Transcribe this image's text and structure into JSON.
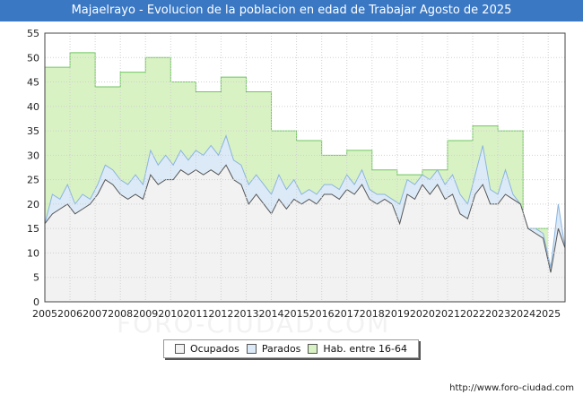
{
  "header": {
    "title": "Majaelrayo - Evolucion de la poblacion en edad de Trabajar Agosto de 2025"
  },
  "watermark": "FORO-CIUDAD.COM",
  "footer": {
    "url": "http://www.foro-ciudad.com"
  },
  "colors": {
    "title_bg": "#3a78c4",
    "hab_fill": "#d9f2c4",
    "hab_line": "#6fc75f",
    "parados_fill": "#dceaf8",
    "parados_line": "#8ab4e0",
    "ocupados_fill": "#f2f2f2",
    "ocupados_line": "#555555"
  },
  "legend": [
    {
      "label": "Ocupados",
      "color": "#f2f2f2"
    },
    {
      "label": "Parados",
      "color": "#dceaf8"
    },
    {
      "label": "Hab. entre 16-64",
      "color": "#d9f2c4"
    }
  ],
  "chart_data": {
    "type": "area",
    "xlim": [
      2005,
      2025.67
    ],
    "ylim": [
      0,
      55
    ],
    "x_ticks": [
      "2005",
      "2006",
      "2007",
      "2008",
      "2009",
      "2010",
      "2011",
      "2012",
      "2013",
      "2014",
      "2015",
      "2016",
      "2017",
      "2018",
      "2019",
      "2020",
      "2021",
      "2022",
      "2023",
      "2024",
      "2025"
    ],
    "y_ticks": [
      "0",
      "5",
      "10",
      "15",
      "20",
      "25",
      "30",
      "35",
      "40",
      "45",
      "50",
      "55"
    ],
    "grid": true,
    "legend_position": "bottom",
    "series": [
      {
        "name": "Hab. entre 16-64",
        "points": [
          [
            2005,
            48
          ],
          [
            2006,
            51
          ],
          [
            2007,
            44
          ],
          [
            2008,
            47
          ],
          [
            2009,
            50
          ],
          [
            2010,
            45
          ],
          [
            2011,
            43
          ],
          [
            2012,
            46
          ],
          [
            2013,
            43
          ],
          [
            2014,
            35
          ],
          [
            2015,
            33
          ],
          [
            2016,
            30
          ],
          [
            2017,
            31
          ],
          [
            2018,
            27
          ],
          [
            2019,
            26
          ],
          [
            2020,
            27
          ],
          [
            2021,
            33
          ],
          [
            2022,
            36
          ],
          [
            2023,
            35
          ],
          [
            2024,
            15
          ]
        ]
      },
      {
        "name": "Parados",
        "points": [
          [
            2005,
            16
          ],
          [
            2005.3,
            22
          ],
          [
            2005.6,
            21
          ],
          [
            2005.9,
            24
          ],
          [
            2006.2,
            20
          ],
          [
            2006.5,
            22
          ],
          [
            2006.8,
            21
          ],
          [
            2007.1,
            24
          ],
          [
            2007.4,
            28
          ],
          [
            2007.7,
            27
          ],
          [
            2008.0,
            25
          ],
          [
            2008.3,
            24
          ],
          [
            2008.6,
            26
          ],
          [
            2008.9,
            24
          ],
          [
            2009.2,
            31
          ],
          [
            2009.5,
            28
          ],
          [
            2009.8,
            30
          ],
          [
            2010.1,
            28
          ],
          [
            2010.4,
            31
          ],
          [
            2010.7,
            29
          ],
          [
            2011.0,
            31
          ],
          [
            2011.3,
            30
          ],
          [
            2011.6,
            32
          ],
          [
            2011.9,
            30
          ],
          [
            2012.2,
            34
          ],
          [
            2012.5,
            29
          ],
          [
            2012.8,
            28
          ],
          [
            2013.1,
            24
          ],
          [
            2013.4,
            26
          ],
          [
            2013.7,
            24
          ],
          [
            2014.0,
            22
          ],
          [
            2014.3,
            26
          ],
          [
            2014.6,
            23
          ],
          [
            2014.9,
            25
          ],
          [
            2015.2,
            22
          ],
          [
            2015.5,
            23
          ],
          [
            2015.8,
            22
          ],
          [
            2016.1,
            24
          ],
          [
            2016.4,
            24
          ],
          [
            2016.7,
            23
          ],
          [
            2017.0,
            26
          ],
          [
            2017.3,
            24
          ],
          [
            2017.6,
            27
          ],
          [
            2017.9,
            23
          ],
          [
            2018.2,
            22
          ],
          [
            2018.5,
            22
          ],
          [
            2018.8,
            21
          ],
          [
            2019.1,
            20
          ],
          [
            2019.4,
            25
          ],
          [
            2019.7,
            24
          ],
          [
            2020.0,
            26
          ],
          [
            2020.3,
            25
          ],
          [
            2020.6,
            27
          ],
          [
            2020.9,
            24
          ],
          [
            2021.2,
            26
          ],
          [
            2021.5,
            22
          ],
          [
            2021.8,
            20
          ],
          [
            2022.1,
            26
          ],
          [
            2022.4,
            32
          ],
          [
            2022.7,
            23
          ],
          [
            2023.0,
            22
          ],
          [
            2023.3,
            27
          ],
          [
            2023.6,
            22
          ],
          [
            2023.9,
            20
          ],
          [
            2024.2,
            15
          ],
          [
            2024.5,
            15
          ],
          [
            2024.8,
            14
          ],
          [
            2025.1,
            7
          ],
          [
            2025.4,
            20
          ],
          [
            2025.67,
            11
          ]
        ]
      },
      {
        "name": "Ocupados",
        "points": [
          [
            2005,
            16
          ],
          [
            2005.3,
            18
          ],
          [
            2005.6,
            19
          ],
          [
            2005.9,
            20
          ],
          [
            2006.2,
            18
          ],
          [
            2006.5,
            19
          ],
          [
            2006.8,
            20
          ],
          [
            2007.1,
            22
          ],
          [
            2007.4,
            25
          ],
          [
            2007.7,
            24
          ],
          [
            2008.0,
            22
          ],
          [
            2008.3,
            21
          ],
          [
            2008.6,
            22
          ],
          [
            2008.9,
            21
          ],
          [
            2009.2,
            26
          ],
          [
            2009.5,
            24
          ],
          [
            2009.8,
            25
          ],
          [
            2010.1,
            25
          ],
          [
            2010.4,
            27
          ],
          [
            2010.7,
            26
          ],
          [
            2011.0,
            27
          ],
          [
            2011.3,
            26
          ],
          [
            2011.6,
            27
          ],
          [
            2011.9,
            26
          ],
          [
            2012.2,
            28
          ],
          [
            2012.5,
            25
          ],
          [
            2012.8,
            24
          ],
          [
            2013.1,
            20
          ],
          [
            2013.4,
            22
          ],
          [
            2013.7,
            20
          ],
          [
            2014.0,
            18
          ],
          [
            2014.3,
            21
          ],
          [
            2014.6,
            19
          ],
          [
            2014.9,
            21
          ],
          [
            2015.2,
            20
          ],
          [
            2015.5,
            21
          ],
          [
            2015.8,
            20
          ],
          [
            2016.1,
            22
          ],
          [
            2016.4,
            22
          ],
          [
            2016.7,
            21
          ],
          [
            2017.0,
            23
          ],
          [
            2017.3,
            22
          ],
          [
            2017.6,
            24
          ],
          [
            2017.9,
            21
          ],
          [
            2018.2,
            20
          ],
          [
            2018.5,
            21
          ],
          [
            2018.8,
            20
          ],
          [
            2019.1,
            16
          ],
          [
            2019.4,
            22
          ],
          [
            2019.7,
            21
          ],
          [
            2020.0,
            24
          ],
          [
            2020.3,
            22
          ],
          [
            2020.6,
            24
          ],
          [
            2020.9,
            21
          ],
          [
            2021.2,
            22
          ],
          [
            2021.5,
            18
          ],
          [
            2021.8,
            17
          ],
          [
            2022.1,
            22
          ],
          [
            2022.4,
            24
          ],
          [
            2022.7,
            20
          ],
          [
            2023.0,
            20
          ],
          [
            2023.3,
            22
          ],
          [
            2023.6,
            21
          ],
          [
            2023.9,
            20
          ],
          [
            2024.2,
            15
          ],
          [
            2024.5,
            14
          ],
          [
            2024.8,
            13
          ],
          [
            2025.1,
            6
          ],
          [
            2025.4,
            15
          ],
          [
            2025.67,
            11
          ]
        ]
      }
    ]
  }
}
